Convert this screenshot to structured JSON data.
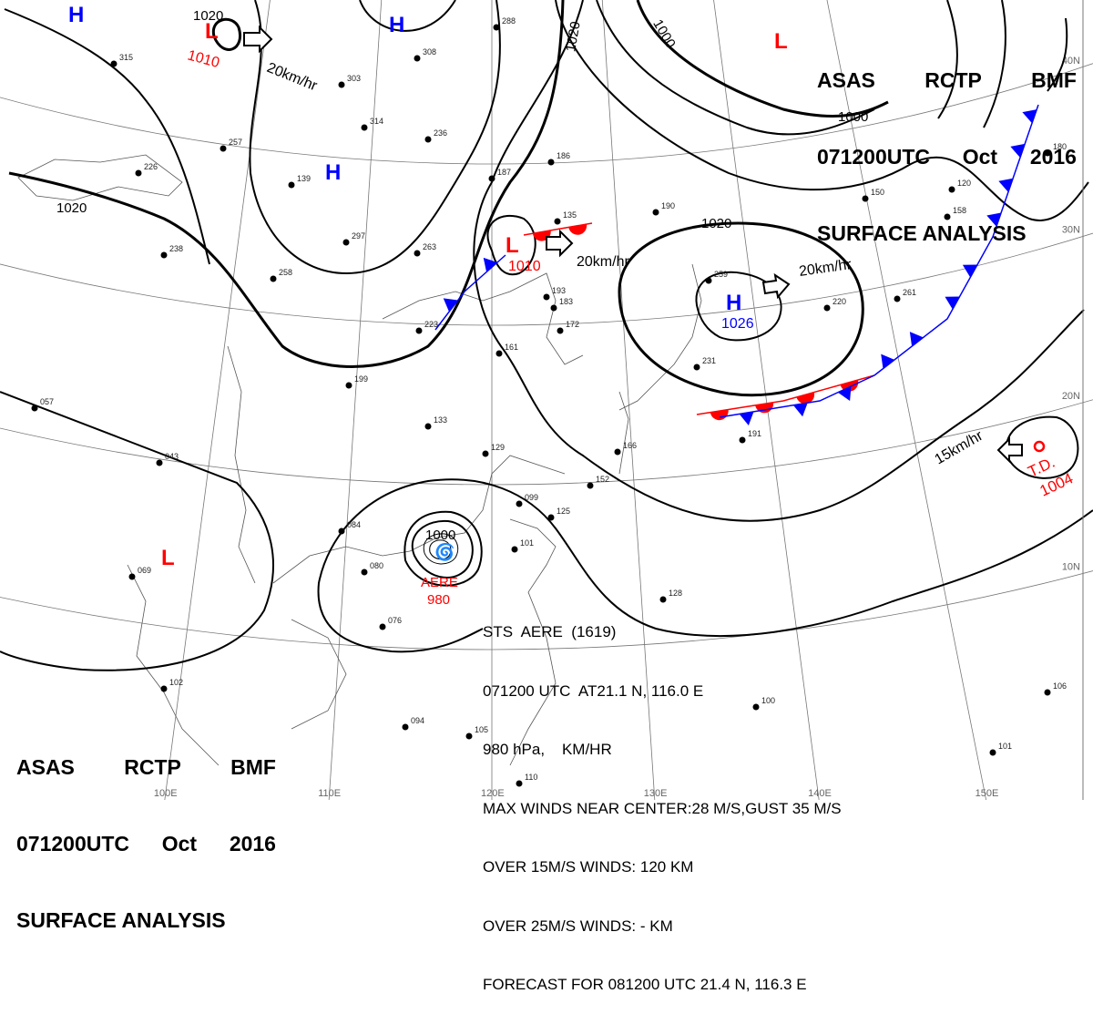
{
  "header": {
    "line1": [
      "ASAS",
      "RCTP",
      "BMF"
    ],
    "line2": [
      "071200UTC",
      "Oct",
      "2016"
    ],
    "line3": "SURFACE ANALYSIS"
  },
  "grid": {
    "latitudes": [
      "10N",
      "20N",
      "30N",
      "40N"
    ],
    "longitudes": [
      "100E",
      "110E",
      "120E",
      "130E",
      "140E",
      "150E"
    ]
  },
  "pressure_centers": [
    {
      "type": "H",
      "color": "#0000ff"
    },
    {
      "type": "H",
      "color": "#0000ff"
    },
    {
      "type": "H",
      "color": "#0000ff"
    },
    {
      "type": "H",
      "color": "#0000ff",
      "value": "1026"
    },
    {
      "type": "L",
      "color": "#ff0000",
      "value": "1010"
    },
    {
      "type": "L",
      "color": "#ff0000",
      "value": "1010"
    },
    {
      "type": "L",
      "color": "#ff0000"
    },
    {
      "type": "L",
      "color": "#ff0000"
    }
  ],
  "isobar_labels": [
    "1020",
    "1020",
    "1020",
    "1020",
    "1000",
    "1000",
    "1000"
  ],
  "movement_labels": [
    "20km/hr",
    "20km/hr",
    "20km/hr",
    "15km/hr"
  ],
  "tropical_systems": {
    "typhoon": {
      "name": "AERE",
      "pressure": "980",
      "color": "#ff0000"
    },
    "depression": {
      "name": "T.D.",
      "pressure": "1004",
      "color": "#ff0000"
    }
  },
  "typhoon_info": {
    "lines": [
      "STS  AERE  (1619)",
      "071200 UTC  AT21.1 N, 116.0 E",
      "980 hPa,    KM/HR",
      "MAX WINDS NEAR CENTER:28 M/S,GUST 35 M/S",
      "OVER 15M/S WINDS: 120 KM",
      "OVER 25M/S WINDS: - KM",
      "FORECAST FOR 081200 UTC 21.4 N, 116.3 E"
    ]
  },
  "stations": [
    "315",
    "226",
    "236",
    "303",
    "314",
    "308",
    "288",
    "187",
    "186",
    "135",
    "263",
    "238",
    "258",
    "223",
    "199",
    "193",
    "172",
    "161",
    "133",
    "129",
    "166",
    "152",
    "099",
    "125",
    "101",
    "084",
    "080",
    "076",
    "069",
    "057",
    "043",
    "102",
    "094",
    "105",
    "110",
    "128",
    "100",
    "106",
    "101",
    "191",
    "261",
    "220",
    "231",
    "259",
    "190",
    "150",
    "120",
    "180",
    "158",
    "183",
    "297",
    "139",
    "257"
  ],
  "colors": {
    "cold_front": "#0000ff",
    "warm_front": "#ff0000",
    "isobar": "#000000",
    "grid": "#777777"
  }
}
